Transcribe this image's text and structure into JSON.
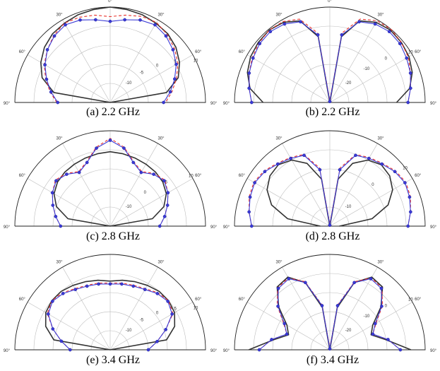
{
  "figure": {
    "panels": [
      {
        "caption": "(a) 2.2 GHz",
        "angle_ticks": [
          "0°",
          "30°",
          "30°",
          "60°",
          "60°",
          "90°",
          "90°"
        ],
        "r_ticks": [
          "-10",
          "-5",
          "0",
          "5",
          "10"
        ]
      },
      {
        "caption": "(b) 2.2 GHz",
        "angle_ticks": [
          "0°",
          "30°",
          "30°",
          "60°",
          "60°",
          "90°",
          "90°"
        ],
        "r_ticks": [
          "-20",
          "-10",
          "0",
          "10"
        ]
      },
      {
        "caption": "(c) 2.8 GHz",
        "angle_ticks": [
          "30°",
          "30°",
          "60°",
          "60°",
          "90°",
          "90°"
        ],
        "r_ticks": [
          "-10",
          "0",
          "5",
          "10"
        ]
      },
      {
        "caption": "(d) 2.8 GHz",
        "angle_ticks": [
          "30°",
          "30°",
          "60°",
          "60°",
          "90°",
          "90°"
        ],
        "r_ticks": [
          "-10",
          "0",
          "10"
        ]
      },
      {
        "caption": "(e) 3.4 GHz",
        "angle_ticks": [
          "30°",
          "30°",
          "60°",
          "60°",
          "90°",
          "90°"
        ],
        "r_ticks": [
          "-10",
          "-5",
          "0",
          "5",
          "10"
        ]
      },
      {
        "caption": "(f) 3.4 GHz",
        "angle_ticks": [
          "30°",
          "30°",
          "60°",
          "60°",
          "90°",
          "90°"
        ],
        "r_ticks": [
          "-20",
          "-10",
          "0",
          "10"
        ]
      }
    ]
  },
  "colors": {
    "black": "#333333",
    "red": "#e8302a",
    "blue": "#3a3ad6",
    "grid": "#bdbdbd",
    "axis": "#222222"
  },
  "chart_data": [
    {
      "type": "polar-line",
      "theta": [
        -90,
        -80,
        -70,
        -60,
        -50,
        -40,
        -30,
        -20,
        -10,
        0,
        10,
        20,
        30,
        40,
        50,
        60,
        70,
        80,
        90
      ],
      "series": [
        {
          "values": [
            0,
            0.6,
            0.76,
            0.84,
            0.9,
            0.94,
            0.96,
            0.98,
            0.99,
            1.0,
            0.99,
            0.98,
            0.96,
            0.94,
            0.9,
            0.84,
            0.76,
            0.6,
            0
          ]
        },
        {
          "values": [
            0.56,
            0.64,
            0.72,
            0.8,
            0.86,
            0.92,
            0.96,
            0.95,
            0.93,
            0.9,
            0.93,
            0.96,
            0.97,
            0.93,
            0.88,
            0.82,
            0.74,
            0.66,
            0.58
          ]
        },
        {
          "values": [
            0.55,
            0.63,
            0.71,
            0.79,
            0.86,
            0.91,
            0.94,
            0.92,
            0.88,
            0.85,
            0.88,
            0.92,
            0.94,
            0.91,
            0.86,
            0.8,
            0.72,
            0.64,
            0.56
          ]
        }
      ]
    },
    {
      "type": "polar-line",
      "theta": [
        -90,
        -80,
        -70,
        -60,
        -50,
        -40,
        -30,
        -20,
        -10,
        0,
        10,
        20,
        30,
        40,
        50,
        60,
        70,
        80,
        90
      ],
      "series": [
        {
          "values": [
            0.7,
            0.85,
            0.92,
            0.96,
            0.98,
            0.99,
            0.97,
            0.91,
            0.7,
            0,
            0.7,
            0.91,
            0.97,
            0.99,
            0.98,
            0.96,
            0.92,
            0.85,
            0.7
          ]
        },
        {
          "values": [
            0.82,
            0.86,
            0.9,
            0.94,
            0.97,
            0.99,
            0.98,
            0.93,
            0.74,
            0.02,
            0.74,
            0.93,
            0.99,
            1.0,
            0.98,
            0.95,
            0.9,
            0.86,
            0.82
          ]
        },
        {
          "values": [
            0.82,
            0.86,
            0.9,
            0.93,
            0.96,
            0.97,
            0.95,
            0.9,
            0.72,
            0.01,
            0.72,
            0.9,
            0.95,
            0.97,
            0.96,
            0.93,
            0.9,
            0.86,
            0.82
          ]
        }
      ]
    },
    {
      "type": "polar-line",
      "theta": [
        -90,
        -80,
        -70,
        -60,
        -50,
        -40,
        -30,
        -20,
        -10,
        0,
        10,
        20,
        30,
        40,
        50,
        60,
        70,
        80,
        90
      ],
      "series": [
        {
          "values": [
            0,
            0.45,
            0.6,
            0.68,
            0.72,
            0.74,
            0.75,
            0.76,
            0.77,
            0.78,
            0.77,
            0.76,
            0.75,
            0.74,
            0.72,
            0.68,
            0.6,
            0.45,
            0
          ]
        },
        {
          "values": [
            0.52,
            0.58,
            0.64,
            0.7,
            0.75,
            0.72,
            0.66,
            0.72,
            0.84,
            0.92,
            0.84,
            0.72,
            0.66,
            0.72,
            0.75,
            0.7,
            0.64,
            0.58,
            0.52
          ]
        },
        {
          "values": [
            0.52,
            0.58,
            0.64,
            0.7,
            0.74,
            0.71,
            0.65,
            0.71,
            0.83,
            0.9,
            0.83,
            0.71,
            0.65,
            0.71,
            0.74,
            0.7,
            0.64,
            0.58,
            0.52
          ]
        }
      ]
    },
    {
      "type": "polar-line",
      "theta": [
        -90,
        -80,
        -70,
        -60,
        -50,
        -40,
        -30,
        -20,
        -10,
        0,
        10,
        20,
        30,
        40,
        50,
        60,
        70,
        80,
        90
      ],
      "series": [
        {
          "values": [
            0.1,
            0.45,
            0.65,
            0.76,
            0.82,
            0.84,
            0.8,
            0.7,
            0.5,
            0,
            0.5,
            0.7,
            0.8,
            0.84,
            0.82,
            0.76,
            0.65,
            0.45,
            0.1
          ]
        },
        {
          "values": [
            0.82,
            0.86,
            0.9,
            0.92,
            0.9,
            0.86,
            0.83,
            0.8,
            0.62,
            0.02,
            0.62,
            0.8,
            0.83,
            0.86,
            0.9,
            0.92,
            0.9,
            0.86,
            0.82
          ]
        },
        {
          "values": [
            0.82,
            0.86,
            0.89,
            0.91,
            0.89,
            0.85,
            0.82,
            0.79,
            0.6,
            0.01,
            0.6,
            0.79,
            0.82,
            0.85,
            0.89,
            0.91,
            0.89,
            0.86,
            0.82
          ]
        }
      ]
    },
    {
      "type": "polar-line",
      "theta": [
        -90,
        -80,
        -70,
        -60,
        -50,
        -40,
        -30,
        -20,
        -10,
        0,
        10,
        20,
        30,
        40,
        50,
        60,
        70,
        80,
        90
      ],
      "series": [
        {
          "values": [
            0,
            0.6,
            0.72,
            0.78,
            0.8,
            0.8,
            0.78,
            0.76,
            0.74,
            0.72,
            0.74,
            0.76,
            0.78,
            0.8,
            0.8,
            0.78,
            0.72,
            0.6,
            0
          ]
        },
        {
          "values": [
            0.42,
            0.52,
            0.64,
            0.76,
            0.8,
            0.78,
            0.74,
            0.72,
            0.71,
            0.7,
            0.71,
            0.72,
            0.74,
            0.78,
            0.8,
            0.76,
            0.62,
            0.5,
            0.4
          ]
        },
        {
          "values": [
            0.42,
            0.52,
            0.64,
            0.75,
            0.79,
            0.77,
            0.73,
            0.71,
            0.7,
            0.69,
            0.7,
            0.71,
            0.73,
            0.77,
            0.79,
            0.75,
            0.62,
            0.5,
            0.4
          ]
        }
      ]
    },
    {
      "type": "polar-line",
      "theta": [
        -90,
        -80,
        -70,
        -60,
        -50,
        -40,
        -30,
        -20,
        -10,
        0,
        10,
        20,
        30,
        40,
        50,
        60,
        70,
        80,
        90
      ],
      "series": [
        {
          "values": [
            0.85,
            0.6,
            0.46,
            0.52,
            0.7,
            0.86,
            0.88,
            0.75,
            0.45,
            0,
            0.45,
            0.75,
            0.88,
            0.86,
            0.7,
            0.52,
            0.46,
            0.6,
            0.85
          ]
        },
        {
          "values": [
            0.74,
            0.62,
            0.48,
            0.56,
            0.72,
            0.85,
            0.87,
            0.76,
            0.48,
            0.02,
            0.48,
            0.76,
            0.87,
            0.85,
            0.72,
            0.56,
            0.48,
            0.62,
            0.74
          ]
        },
        {
          "values": [
            0.74,
            0.62,
            0.48,
            0.55,
            0.71,
            0.84,
            0.86,
            0.75,
            0.47,
            0.01,
            0.47,
            0.75,
            0.86,
            0.84,
            0.71,
            0.55,
            0.48,
            0.62,
            0.74
          ]
        }
      ]
    }
  ]
}
